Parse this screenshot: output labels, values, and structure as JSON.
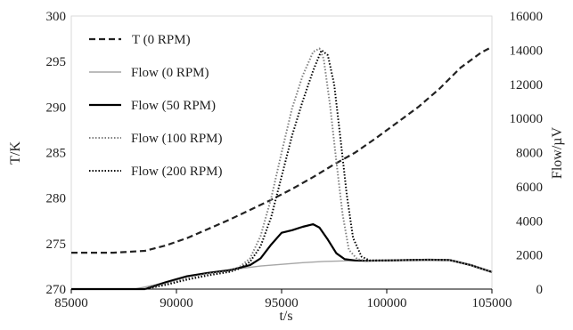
{
  "chart_data": {
    "type": "line",
    "title": "",
    "xlabel": "t/s",
    "ylabel_left": "T/K",
    "ylabel_right": "Flow/µV",
    "xlim": [
      85000,
      105000
    ],
    "ylim_left": [
      270,
      300
    ],
    "ylim_right": [
      0,
      16000
    ],
    "x_ticks": [
      85000,
      90000,
      95000,
      100000,
      105000
    ],
    "y_left_ticks": [
      270,
      275,
      280,
      285,
      290,
      295,
      300
    ],
    "y_right_ticks": [
      0,
      2000,
      4000,
      6000,
      8000,
      10000,
      12000,
      14000,
      16000
    ],
    "grid": false,
    "legend_position": "top-left",
    "series": [
      {
        "name": "T (0 RPM)",
        "axis": "left",
        "color": "#222222",
        "style": "dashed",
        "x": [
          85000,
          87000,
          88500,
          89500,
          90500,
          91500,
          92500,
          93500,
          94500,
          95500,
          96500,
          97500,
          98500,
          99500,
          100500,
          101500,
          102500,
          103500,
          104500,
          105000
        ],
        "y": [
          274.0,
          274.0,
          274.2,
          274.8,
          275.6,
          276.6,
          277.6,
          278.7,
          279.8,
          281.0,
          282.3,
          283.7,
          285.0,
          286.6,
          288.3,
          290.0,
          292.0,
          294.3,
          296.0,
          296.6
        ]
      },
      {
        "name": "Flow (0 RPM)",
        "axis": "right",
        "color": "#a6a6a6",
        "style": "solid",
        "x": [
          85000,
          88000,
          89000,
          90000,
          91000,
          92000,
          93000,
          94000,
          95000,
          96000,
          97000,
          98000,
          99000,
          100000,
          101000,
          102000,
          103000,
          104000,
          105000
        ],
        "y": [
          0,
          0,
          250,
          600,
          850,
          1050,
          1200,
          1350,
          1450,
          1550,
          1620,
          1650,
          1660,
          1680,
          1700,
          1720,
          1700,
          1400,
          1000
        ]
      },
      {
        "name": "Flow (50 RPM)",
        "axis": "right",
        "color": "#000000",
        "style": "solid",
        "x": [
          85000,
          88500,
          89500,
          90500,
          91500,
          92500,
          93500,
          94000,
          94500,
          95000,
          95500,
          96000,
          96500,
          96800,
          97200,
          97600,
          98000,
          98500,
          99000,
          100000,
          101000,
          102000,
          103000,
          104000,
          105000
        ],
        "y": [
          0,
          0,
          400,
          750,
          950,
          1100,
          1400,
          1800,
          2600,
          3300,
          3450,
          3650,
          3800,
          3600,
          2900,
          2100,
          1750,
          1680,
          1660,
          1680,
          1700,
          1720,
          1700,
          1400,
          1000
        ]
      },
      {
        "name": "Flow (100 RPM)",
        "axis": "right",
        "color": "#808080",
        "style": "dotted",
        "x": [
          85000,
          88500,
          89500,
          90500,
          91500,
          92500,
          93000,
          93500,
          94000,
          94500,
          95000,
          95500,
          96000,
          96500,
          96800,
          97000,
          97300,
          97600,
          97900,
          98200,
          98600,
          99000,
          100000,
          101000,
          102000,
          103000,
          104000,
          105000
        ],
        "y": [
          0,
          0,
          300,
          650,
          900,
          1050,
          1300,
          1800,
          3100,
          5300,
          8000,
          10600,
          12500,
          13900,
          14100,
          13500,
          10800,
          7500,
          4400,
          2300,
          1750,
          1660,
          1680,
          1700,
          1720,
          1700,
          1400,
          1000
        ]
      },
      {
        "name": "Flow (200 RPM)",
        "axis": "right",
        "color": "#000000",
        "style": "dotted",
        "x": [
          85000,
          88500,
          89500,
          90500,
          91500,
          92500,
          93000,
          93500,
          94000,
          94500,
          95000,
          95500,
          96000,
          96500,
          96900,
          97200,
          97500,
          97800,
          98100,
          98400,
          98800,
          99200,
          100000,
          101000,
          102000,
          103000,
          104000,
          105000
        ],
        "y": [
          0,
          0,
          250,
          550,
          800,
          1000,
          1200,
          1600,
          2500,
          4200,
          6600,
          9000,
          11000,
          12800,
          14000,
          13700,
          12000,
          8800,
          5500,
          3000,
          1900,
          1680,
          1680,
          1700,
          1720,
          1700,
          1400,
          1000
        ]
      }
    ]
  }
}
